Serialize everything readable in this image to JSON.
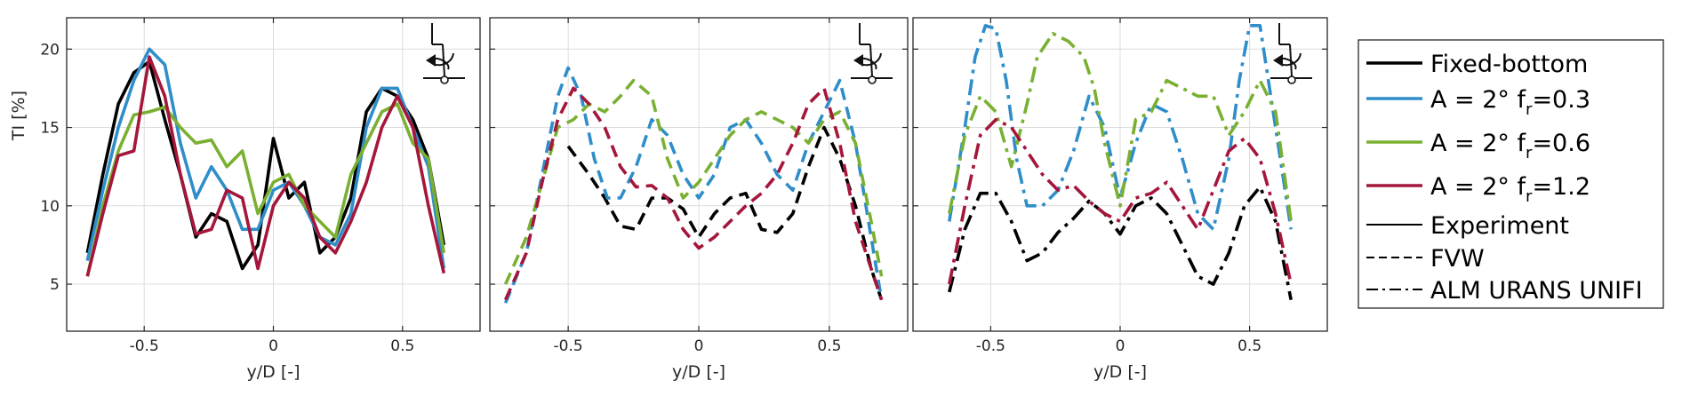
{
  "colors": {
    "fixed": "#000000",
    "f03": "#2f8ec9",
    "f06": "#7ab032",
    "f12": "#a5163b",
    "grid": "#dcdcdc",
    "axis": "#262626"
  },
  "chart_data": [
    {
      "type": "line",
      "linestyle": "solid",
      "xlabel": "y/D [-]",
      "ylabel": "TI [%]",
      "xlim": [
        -0.8,
        0.8
      ],
      "ylim": [
        2,
        22
      ],
      "xticks": [
        -0.5,
        0,
        0.5
      ],
      "yticks": [
        5,
        10,
        15,
        20
      ],
      "grid": true,
      "series": [
        {
          "key": "fixed",
          "x": [
            -0.72,
            -0.66,
            -0.6,
            -0.54,
            -0.48,
            -0.42,
            -0.36,
            -0.3,
            -0.24,
            -0.18,
            -0.12,
            -0.06,
            0,
            0.06,
            0.12,
            0.18,
            0.24,
            0.3,
            0.36,
            0.42,
            0.48,
            0.54,
            0.6,
            0.66
          ],
          "y": [
            7,
            12,
            16.5,
            18.5,
            19.2,
            15.5,
            12,
            8,
            9.5,
            9,
            6,
            7.5,
            14.3,
            10.5,
            11.5,
            7,
            8,
            10.5,
            16,
            17.5,
            17,
            15.5,
            13,
            7.5
          ]
        },
        {
          "key": "f03",
          "x": [
            -0.72,
            -0.66,
            -0.6,
            -0.54,
            -0.48,
            -0.42,
            -0.36,
            -0.3,
            -0.24,
            -0.18,
            -0.12,
            -0.06,
            0,
            0.06,
            0.12,
            0.18,
            0.24,
            0.3,
            0.36,
            0.42,
            0.48,
            0.54,
            0.6,
            0.66
          ],
          "y": [
            6.5,
            11,
            15,
            18,
            20,
            19,
            14,
            10.5,
            12.5,
            11,
            8.5,
            8.5,
            11,
            11.5,
            10,
            8,
            7.5,
            9.5,
            15,
            17.5,
            17.5,
            15,
            12.5,
            6
          ]
        },
        {
          "key": "f06",
          "x": [
            -0.72,
            -0.66,
            -0.6,
            -0.54,
            -0.48,
            -0.42,
            -0.36,
            -0.3,
            -0.24,
            -0.18,
            -0.12,
            -0.06,
            0,
            0.06,
            0.12,
            0.18,
            0.24,
            0.3,
            0.36,
            0.42,
            0.48,
            0.54,
            0.6,
            0.66
          ],
          "y": [
            5.5,
            10,
            13.5,
            15.8,
            16,
            16.3,
            15,
            14,
            14.2,
            12.5,
            13.5,
            9.5,
            11.5,
            12,
            10,
            9,
            8,
            12,
            14,
            16,
            16.5,
            14,
            13,
            7
          ]
        },
        {
          "key": "f12",
          "x": [
            -0.72,
            -0.66,
            -0.6,
            -0.54,
            -0.48,
            -0.42,
            -0.36,
            -0.3,
            -0.24,
            -0.18,
            -0.12,
            -0.06,
            0,
            0.06,
            0.12,
            0.18,
            0.24,
            0.3,
            0.36,
            0.42,
            0.48,
            0.54,
            0.6,
            0.66
          ],
          "y": [
            5.5,
            9.5,
            13.2,
            13.5,
            19.5,
            17,
            12,
            8.2,
            8.5,
            11,
            10.5,
            6,
            10,
            11.5,
            10.5,
            8,
            7,
            9,
            11.5,
            15,
            17,
            15,
            10,
            5.7
          ]
        }
      ]
    },
    {
      "type": "line",
      "linestyle": "dashed",
      "xlabel": "y/D [-]",
      "ylabel": "",
      "xlim": [
        -0.8,
        0.8
      ],
      "ylim": [
        2,
        22
      ],
      "xticks": [
        -0.5,
        0,
        0.5
      ],
      "yticks": [
        5,
        10,
        15,
        20
      ],
      "grid": true,
      "series": [
        {
          "key": "fixed",
          "x": [
            -0.5,
            -0.42,
            -0.36,
            -0.3,
            -0.24,
            -0.18,
            -0.12,
            -0.06,
            0,
            0.06,
            0.12,
            0.18,
            0.24,
            0.3,
            0.36,
            0.42,
            0.48,
            0.54,
            0.6,
            0.66,
            0.7
          ],
          "y": [
            13.8,
            12,
            10.5,
            8.7,
            8.5,
            10.5,
            10.5,
            9.8,
            8,
            9.5,
            10.5,
            10.8,
            8.5,
            8.3,
            9.5,
            12.5,
            15,
            13,
            10,
            6,
            4
          ]
        },
        {
          "key": "f03",
          "x": [
            -0.74,
            -0.66,
            -0.6,
            -0.54,
            -0.5,
            -0.45,
            -0.4,
            -0.35,
            -0.3,
            -0.24,
            -0.18,
            -0.12,
            -0.06,
            0,
            0.06,
            0.12,
            0.18,
            0.24,
            0.3,
            0.36,
            0.42,
            0.48,
            0.54,
            0.6,
            0.66,
            0.7
          ],
          "y": [
            3.8,
            7,
            12,
            17,
            18.8,
            17,
            13,
            10.5,
            10.5,
            12.5,
            15.5,
            14.5,
            12,
            10.5,
            12,
            15,
            15.5,
            14,
            12,
            11,
            14,
            16,
            18,
            14,
            8,
            4
          ]
        },
        {
          "key": "f06",
          "x": [
            -0.74,
            -0.66,
            -0.6,
            -0.54,
            -0.48,
            -0.42,
            -0.36,
            -0.3,
            -0.25,
            -0.18,
            -0.12,
            -0.06,
            0,
            0.06,
            0.12,
            0.18,
            0.24,
            0.3,
            0.36,
            0.42,
            0.48,
            0.54,
            0.6,
            0.66,
            0.7
          ],
          "y": [
            5,
            8,
            11.5,
            15,
            15.5,
            16.5,
            16,
            17,
            18,
            17,
            13,
            10.5,
            11.5,
            13,
            14.5,
            15.5,
            16,
            15.5,
            15,
            14,
            15.5,
            16,
            14,
            9,
            5.5
          ]
        },
        {
          "key": "f12",
          "x": [
            -0.74,
            -0.66,
            -0.6,
            -0.54,
            -0.48,
            -0.42,
            -0.36,
            -0.3,
            -0.24,
            -0.18,
            -0.12,
            -0.06,
            0,
            0.06,
            0.12,
            0.18,
            0.24,
            0.3,
            0.36,
            0.42,
            0.48,
            0.54,
            0.6,
            0.66,
            0.7
          ],
          "y": [
            4,
            7,
            11.5,
            15.5,
            17.5,
            16.5,
            15,
            12.5,
            11.2,
            11.3,
            10.5,
            8.5,
            7.3,
            8,
            9,
            10,
            10.8,
            12,
            14,
            16.5,
            17.5,
            14,
            9,
            6,
            4
          ]
        }
      ]
    },
    {
      "type": "line",
      "linestyle": "dashdot",
      "xlabel": "y/D [-]",
      "ylabel": "",
      "xlim": [
        -0.8,
        0.8
      ],
      "ylim": [
        2,
        22
      ],
      "xticks": [
        -0.5,
        0,
        0.5
      ],
      "yticks": [
        5,
        10,
        15,
        20
      ],
      "grid": true,
      "series": [
        {
          "key": "fixed",
          "x": [
            -0.66,
            -0.6,
            -0.54,
            -0.48,
            -0.42,
            -0.36,
            -0.3,
            -0.24,
            -0.18,
            -0.12,
            -0.06,
            0,
            0.06,
            0.12,
            0.18,
            0.24,
            0.3,
            0.36,
            0.42,
            0.48,
            0.54,
            0.6,
            0.66
          ],
          "y": [
            4.5,
            8.5,
            10.8,
            10.8,
            9,
            6.5,
            7,
            8.3,
            9.2,
            10.3,
            9.5,
            8.2,
            10,
            10.5,
            9.5,
            7.5,
            5.5,
            5,
            7,
            10,
            11.2,
            9,
            4
          ]
        },
        {
          "key": "f03",
          "x": [
            -0.66,
            -0.6,
            -0.56,
            -0.52,
            -0.48,
            -0.44,
            -0.4,
            -0.36,
            -0.3,
            -0.24,
            -0.18,
            -0.12,
            -0.06,
            0,
            0.06,
            0.12,
            0.18,
            0.24,
            0.3,
            0.36,
            0.42,
            0.46,
            0.5,
            0.54,
            0.6,
            0.66
          ],
          "y": [
            9,
            15,
            19.5,
            21.5,
            21.3,
            18,
            13,
            10,
            10,
            11,
            13.5,
            17,
            15,
            10.5,
            14,
            16.5,
            16,
            13,
            9.5,
            8.5,
            13,
            18,
            21.5,
            21.5,
            15,
            8.5
          ]
        },
        {
          "key": "f06",
          "x": [
            -0.66,
            -0.6,
            -0.54,
            -0.48,
            -0.42,
            -0.36,
            -0.32,
            -0.26,
            -0.2,
            -0.14,
            -0.1,
            -0.06,
            0,
            0.06,
            0.12,
            0.18,
            0.24,
            0.3,
            0.36,
            0.42,
            0.48,
            0.54,
            0.6,
            0.66
          ],
          "y": [
            9.5,
            14.5,
            17,
            16,
            12.5,
            16.5,
            19.5,
            21,
            20.5,
            19.5,
            17.5,
            14,
            10,
            15.5,
            16,
            18,
            17.5,
            17,
            17,
            14.5,
            16,
            18,
            16,
            9
          ]
        },
        {
          "key": "f12",
          "x": [
            -0.66,
            -0.6,
            -0.54,
            -0.48,
            -0.42,
            -0.36,
            -0.3,
            -0.24,
            -0.18,
            -0.12,
            -0.06,
            0,
            0.06,
            0.12,
            0.18,
            0.24,
            0.3,
            0.36,
            0.42,
            0.48,
            0.54,
            0.6,
            0.66
          ],
          "y": [
            5,
            10,
            14.5,
            15.5,
            15,
            13.5,
            12,
            11,
            11.3,
            10.3,
            9.5,
            9,
            10.5,
            10.8,
            11.5,
            10,
            8.5,
            11,
            13.5,
            14.3,
            13,
            9.5,
            5
          ]
        }
      ]
    }
  ],
  "legend": {
    "placement": "right",
    "entries": [
      {
        "label": "Fixed-bottom",
        "color": "fixed",
        "style": "solid"
      },
      {
        "label_main": "A = 2°   f",
        "label_sub": "r",
        "label_tail": "=0.3",
        "color": "f03",
        "style": "solid"
      },
      {
        "label_main": "A = 2°   f",
        "label_sub": "r",
        "label_tail": "=0.6",
        "color": "f06",
        "style": "solid"
      },
      {
        "label_main": "A = 2°   f",
        "label_sub": "r",
        "label_tail": "=1.2",
        "color": "f12",
        "style": "solid"
      },
      {
        "label": "Experiment",
        "color": "fixed",
        "style": "solid-thin"
      },
      {
        "label": "FVW",
        "color": "fixed",
        "style": "dashed-thin"
      },
      {
        "label": "ALM URANS UNIFI",
        "color": "fixed",
        "style": "dashdot-thin"
      }
    ]
  },
  "icons": [
    "turbine-sketch-icon"
  ]
}
